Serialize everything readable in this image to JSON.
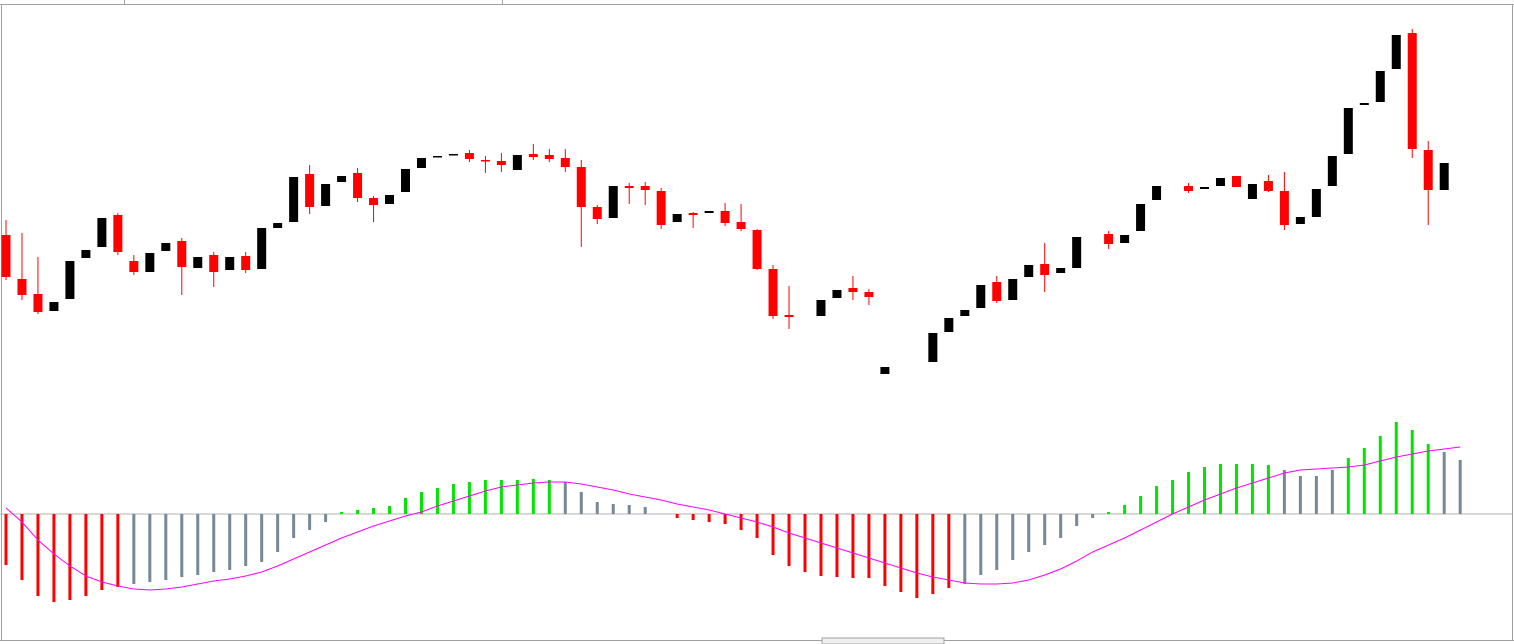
{
  "chart_data": [
    {
      "type": "candlestick",
      "up_color": "#000000",
      "down_color": "#ff0000",
      "ylim": [
        0,
        400
      ],
      "open": [
        165,
        121,
        106,
        89,
        101,
        142,
        153,
        185,
        139,
        128,
        149,
        159,
        132,
        145,
        130,
        144,
        131,
        172,
        178,
        226,
        194,
        218,
        227,
        202,
        196,
        208,
        232,
        243,
        245,
        247,
        240,
        239,
        230,
        246,
        245,
        242,
        233,
        193,
        182,
        214,
        214,
        209,
        178,
        187,
        187,
        189,
        178,
        170,
        131,
        85,
        null,
        84,
        102,
        112,
        108,
        26,
        null,
        null,
        38,
        68,
        84,
        92,
        118,
        100,
        123,
        136,
        127,
        132,
        null,
        166,
        157,
        169,
        200,
        null,
        214,
        211,
        214,
        224,
        201,
        219,
        209,
        176,
        183,
        214,
        246,
        295,
        298,
        331,
        367,
        250,
        210,
        null
      ],
      "high": [
        180,
        167,
        143,
        98,
        139,
        150,
        182,
        187,
        145,
        147,
        157,
        162,
        143,
        148,
        143,
        148,
        172,
        177,
        223,
        235,
        216,
        224,
        232,
        204,
        205,
        231,
        242,
        244,
        246,
        250,
        244,
        247,
        245,
        256,
        251,
        251,
        240,
        195,
        214,
        217,
        218,
        212,
        186,
        188,
        189,
        197,
        196,
        171,
        135,
        114,
        null,
        100,
        110,
        124,
        111,
        33,
        null,
        null,
        67,
        82,
        90,
        115,
        124,
        121,
        135,
        157,
        132,
        163,
        null,
        169,
        165,
        196,
        214,
        null,
        217,
        213,
        222,
        224,
        216,
        225,
        228,
        183,
        211,
        244,
        292,
        297,
        329,
        365,
        371,
        259,
        237,
        null
      ],
      "low": [
        120,
        100,
        86,
        89,
        101,
        142,
        153,
        145,
        125,
        128,
        149,
        105,
        132,
        113,
        130,
        127,
        131,
        172,
        178,
        186,
        194,
        218,
        198,
        178,
        196,
        208,
        232,
        243,
        245,
        238,
        227,
        228,
        230,
        240,
        238,
        228,
        153,
        176,
        182,
        196,
        195,
        171,
        178,
        172,
        187,
        174,
        169,
        130,
        81,
        71,
        null,
        84,
        102,
        100,
        95,
        26,
        null,
        null,
        38,
        68,
        84,
        92,
        97,
        100,
        123,
        108,
        127,
        132,
        null,
        151,
        157,
        169,
        200,
        null,
        207,
        211,
        214,
        213,
        201,
        208,
        170,
        176,
        183,
        214,
        246,
        295,
        298,
        331,
        242,
        175,
        210,
        null
      ],
      "close": [
        123,
        105,
        88,
        98,
        139,
        150,
        182,
        148,
        128,
        147,
        157,
        133,
        143,
        128,
        143,
        130,
        172,
        177,
        223,
        193,
        216,
        224,
        202,
        195,
        205,
        231,
        242,
        244,
        246,
        241,
        239,
        235,
        245,
        243,
        241,
        233,
        193,
        181,
        214,
        212,
        210,
        175,
        186,
        185,
        189,
        177,
        171,
        131,
        84,
        83,
        null,
        100,
        110,
        108,
        103,
        33,
        null,
        null,
        67,
        82,
        90,
        115,
        99,
        121,
        135,
        125,
        132,
        163,
        null,
        156,
        165,
        196,
        214,
        null,
        209,
        213,
        222,
        213,
        216,
        209,
        175,
        183,
        211,
        244,
        292,
        297,
        329,
        365,
        251,
        210,
        237,
        null
      ]
    },
    {
      "type": "bar",
      "ylim": [
        -126,
        130
      ],
      "zero_line": true,
      "zero_line_color": "#b0b0b0",
      "values": [
        -51,
        -66,
        -82,
        -88,
        -86,
        -82,
        -76,
        -73,
        -70,
        -68,
        -66,
        -63,
        -61,
        -58,
        -56,
        -52,
        -48,
        -38,
        -24,
        -16,
        -8,
        2,
        4,
        6,
        8,
        16,
        22,
        26,
        30,
        32,
        34,
        34,
        34,
        35,
        34,
        32,
        22,
        12,
        10,
        9,
        7,
        0,
        -4,
        -6,
        -8,
        -10,
        -16,
        -24,
        -41,
        -52,
        -58,
        -62,
        -63,
        -64,
        -64,
        -72,
        -78,
        -84,
        -80,
        -74,
        -70,
        -61,
        -56,
        -46,
        -38,
        -31,
        -24,
        -12,
        -4,
        2,
        9,
        18,
        28,
        34,
        42,
        47,
        50,
        50,
        50,
        49,
        44,
        38,
        38,
        44,
        56,
        66,
        78,
        92,
        84,
        70,
        62,
        54
      ],
      "colors": [
        "#ff0000",
        "#ff0000",
        "#ff0000",
        "#ff0000",
        "#ff0000",
        "#ff0000",
        "#ff0000",
        "#ff0000",
        "#778899",
        "#778899",
        "#778899",
        "#778899",
        "#778899",
        "#778899",
        "#778899",
        "#778899",
        "#778899",
        "#778899",
        "#778899",
        "#778899",
        "#778899",
        "#00e600",
        "#00e600",
        "#00e600",
        "#00e600",
        "#00e600",
        "#00e600",
        "#00e600",
        "#00e600",
        "#00e600",
        "#00e600",
        "#00e600",
        "#00e600",
        "#00e600",
        "#00e600",
        "#778899",
        "#778899",
        "#778899",
        "#778899",
        "#778899",
        "#778899",
        "#778899",
        "#ff0000",
        "#ff0000",
        "#ff0000",
        "#ff0000",
        "#ff0000",
        "#ff0000",
        "#ff0000",
        "#ff0000",
        "#ff0000",
        "#ff0000",
        "#ff0000",
        "#ff0000",
        "#ff0000",
        "#ff0000",
        "#ff0000",
        "#ff0000",
        "#ff0000",
        "#ff0000",
        "#778899",
        "#778899",
        "#778899",
        "#778899",
        "#778899",
        "#778899",
        "#778899",
        "#778899",
        "#778899",
        "#00e600",
        "#00e600",
        "#00e600",
        "#00e600",
        "#00e600",
        "#00e600",
        "#00e600",
        "#00e600",
        "#00e600",
        "#00e600",
        "#00e600",
        "#778899",
        "#778899",
        "#778899",
        "#778899",
        "#00e600",
        "#00e600",
        "#00e600",
        "#00e600",
        "#00e600",
        "#00e600",
        "#778899",
        "#778899"
      ],
      "line": {
        "color": "#ff00ff",
        "values": [
          6,
          -8,
          -26,
          -40,
          -52,
          -62,
          -68,
          -72,
          -75,
          -76,
          -75,
          -73,
          -70,
          -67,
          -65,
          -62,
          -58,
          -52,
          -45,
          -38,
          -31,
          -24,
          -18,
          -12,
          -7,
          -2,
          2,
          8,
          13,
          18,
          23,
          27,
          29,
          31,
          32,
          32,
          30,
          27,
          24,
          20,
          17,
          14,
          10,
          7,
          4,
          0,
          -4,
          -8,
          -13,
          -19,
          -24,
          -29,
          -34,
          -39,
          -44,
          -49,
          -54,
          -59,
          -63,
          -66,
          -69,
          -70,
          -70,
          -69,
          -66,
          -61,
          -55,
          -47,
          -38,
          -31,
          -24,
          -16,
          -8,
          0,
          7,
          14,
          20,
          26,
          31,
          36,
          41,
          44,
          45,
          46,
          47,
          49,
          53,
          57,
          60,
          63,
          65,
          67
        ]
      }
    }
  ]
}
